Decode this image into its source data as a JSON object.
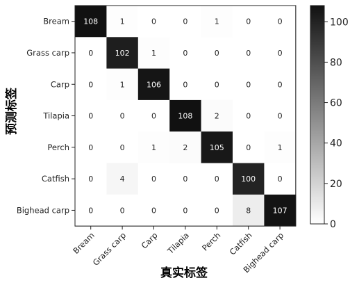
{
  "chart_data": {
    "type": "heatmap",
    "xlabel": "真实标签",
    "ylabel": "预测标签",
    "categories": [
      "Bream",
      "Grass carp",
      "Carp",
      "Tilapia",
      "Perch",
      "Catfish",
      "Bighead carp"
    ],
    "values": [
      [
        108,
        1,
        0,
        0,
        1,
        0,
        0
      ],
      [
        0,
        102,
        1,
        0,
        0,
        0,
        0
      ],
      [
        0,
        1,
        106,
        0,
        0,
        0,
        0
      ],
      [
        0,
        0,
        0,
        108,
        2,
        0,
        0
      ],
      [
        0,
        0,
        1,
        2,
        105,
        0,
        1
      ],
      [
        0,
        4,
        0,
        0,
        0,
        100,
        0
      ],
      [
        0,
        0,
        0,
        0,
        0,
        8,
        107
      ]
    ],
    "colorbar": {
      "ticks": [
        0,
        20,
        40,
        60,
        80,
        100
      ],
      "range": [
        0,
        108
      ],
      "low_color": "#ffffff",
      "high_color": "#111111"
    },
    "grid": false,
    "legend": "right colorbar"
  }
}
